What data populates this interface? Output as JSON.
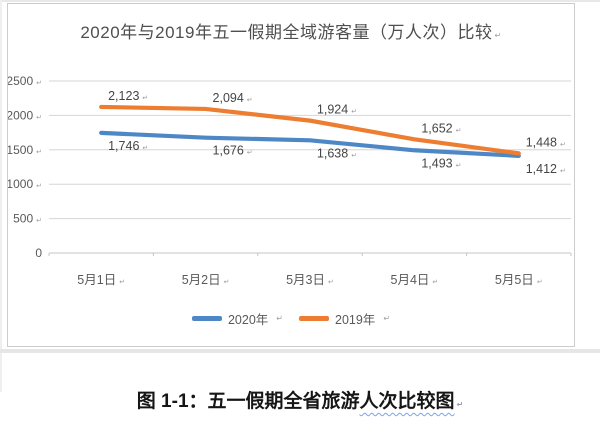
{
  "chart_data": {
    "type": "line",
    "title": "2020年与2019年五一假期全域游客量（万人次）比较",
    "xlabel": "",
    "ylabel": "",
    "categories": [
      "5月1日",
      "5月2日",
      "5月3日",
      "5月4日",
      "5月5日"
    ],
    "series": [
      {
        "name": "2020年",
        "color": "#4e87c6",
        "values": [
          1746,
          1676,
          1638,
          1493,
          1412
        ],
        "data_labels": [
          "1,746",
          "1,676",
          "1,638",
          "1,493",
          "1,412"
        ],
        "label_position": "below"
      },
      {
        "name": "2019年",
        "color": "#ed7d31",
        "values": [
          2123,
          2094,
          1924,
          1652,
          1448
        ],
        "data_labels": [
          "2,123",
          "2,094",
          "1,924",
          "1,652",
          "1,448"
        ],
        "label_position": "above"
      }
    ],
    "ylim": [
      0,
      2500
    ],
    "yticks": [
      0,
      500,
      1000,
      1500,
      2000,
      2500
    ],
    "ytick_labels": [
      "0",
      "500",
      "1000",
      "1500",
      "2000",
      "2500"
    ],
    "grid": true,
    "legend_position": "bottom"
  },
  "marks": {
    "return_mark": "↵"
  },
  "caption": {
    "prefix": "图 1-1：五一假期全省旅游",
    "underlined": "人次比较图",
    "underline_color": "#7aa3f0"
  },
  "colors": {
    "gridline": "#d6d6d6",
    "axis": "#c4c4c4",
    "tick_text": "#595959",
    "data_label": "#454545",
    "mark": "#9e9e9e"
  }
}
